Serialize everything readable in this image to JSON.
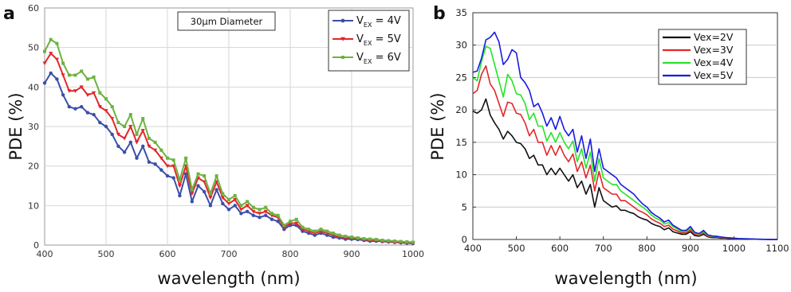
{
  "chart_data": [
    {
      "type": "line",
      "panel_label": "a",
      "title": "",
      "annotation": "30µm Diameter",
      "xlabel": "wavelength (nm)",
      "ylabel": "PDE (%)",
      "xlim": [
        400,
        1000
      ],
      "ylim": [
        0,
        60
      ],
      "xticks": [
        400,
        500,
        600,
        700,
        800,
        900,
        1000
      ],
      "yticks": [
        0,
        10,
        20,
        30,
        40,
        50,
        60
      ],
      "grid": true,
      "legend_position": "top-right",
      "x": [
        400,
        410,
        420,
        430,
        440,
        450,
        460,
        470,
        480,
        490,
        500,
        510,
        520,
        530,
        540,
        550,
        560,
        570,
        580,
        590,
        600,
        610,
        620,
        630,
        640,
        650,
        660,
        670,
        680,
        690,
        700,
        710,
        720,
        730,
        740,
        750,
        760,
        770,
        780,
        790,
        800,
        810,
        820,
        830,
        840,
        850,
        860,
        870,
        880,
        890,
        900,
        910,
        920,
        930,
        940,
        950,
        960,
        970,
        980,
        990,
        1000
      ],
      "series": [
        {
          "name": "V",
          "subscript": "EX",
          "name_suffix": " = 4V",
          "color": "#3a4fa8",
          "marker": "circle",
          "values": [
            41,
            43.5,
            42,
            38,
            35,
            34.5,
            35,
            33.5,
            33,
            31,
            30,
            28,
            25,
            23.5,
            26,
            22,
            25,
            21,
            20.5,
            19,
            17.5,
            17,
            12.5,
            18,
            11,
            15,
            13.5,
            10,
            14,
            10.5,
            9,
            10,
            8,
            8.5,
            7.5,
            7,
            7.5,
            6.5,
            6,
            4,
            5,
            5,
            3.5,
            3,
            2.5,
            3,
            2.5,
            2,
            1.8,
            1.5,
            1.5,
            1.4,
            1.2,
            1,
            1,
            0.9,
            0.8,
            0.7,
            0.6,
            0.5,
            0.4
          ]
        },
        {
          "name": "V",
          "subscript": "EX",
          "name_suffix": " = 5V",
          "color": "#e3262b",
          "marker": "triangle",
          "values": [
            46,
            48.5,
            47,
            43,
            39,
            39,
            40,
            38,
            38.5,
            35,
            34,
            32,
            28,
            27,
            30,
            26,
            29,
            25,
            24,
            22,
            20,
            20,
            15,
            20,
            13,
            17,
            16,
            12,
            16,
            12,
            10.5,
            11.5,
            9,
            10,
            8.5,
            8,
            8.5,
            7.5,
            7,
            4.5,
            5.5,
            5.5,
            4,
            3.5,
            3,
            3.5,
            3,
            2.5,
            2,
            1.8,
            1.8,
            1.6,
            1.4,
            1.2,
            1.2,
            1,
            0.9,
            0.8,
            0.7,
            0.6,
            0.5
          ]
        },
        {
          "name": "V",
          "subscript": "EX",
          "name_suffix": " = 6V",
          "color": "#6bb33f",
          "marker": "square",
          "values": [
            49,
            52,
            51,
            46,
            43,
            43,
            44,
            42,
            42.5,
            38.5,
            37,
            35,
            31,
            30,
            33,
            28,
            32,
            27,
            26,
            24,
            22,
            21.5,
            16.5,
            22,
            14,
            18,
            17.5,
            13,
            17.5,
            13,
            11.5,
            12.5,
            10,
            11,
            9.5,
            9,
            9.5,
            8,
            7.5,
            5,
            6,
            6.5,
            4.5,
            4,
            3.5,
            4,
            3.5,
            3,
            2.5,
            2.2,
            2,
            1.8,
            1.6,
            1.5,
            1.4,
            1.2,
            1.1,
            1,
            0.9,
            0.8,
            0.7
          ]
        }
      ]
    },
    {
      "type": "line",
      "panel_label": "b",
      "title": "",
      "xlabel": "wavelength (nm)",
      "ylabel": "PDE (%)",
      "xlim": [
        400,
        1100
      ],
      "ylim": [
        0,
        35
      ],
      "xticks": [
        400,
        500,
        600,
        700,
        800,
        900,
        1000,
        1100
      ],
      "yticks": [
        0,
        5,
        10,
        15,
        20,
        25,
        30,
        35
      ],
      "grid": true,
      "legend_position": "top-right",
      "x": [
        400,
        410,
        420,
        430,
        440,
        450,
        460,
        470,
        480,
        490,
        500,
        510,
        520,
        530,
        540,
        550,
        560,
        570,
        580,
        590,
        600,
        610,
        620,
        630,
        640,
        650,
        660,
        670,
        680,
        690,
        700,
        710,
        720,
        730,
        740,
        750,
        760,
        770,
        780,
        790,
        800,
        810,
        820,
        830,
        840,
        850,
        860,
        870,
        880,
        890,
        900,
        910,
        920,
        930,
        940,
        950,
        960,
        970,
        980,
        990,
        1000,
        1010,
        1020,
        1030,
        1040,
        1050,
        1060,
        1070,
        1080,
        1090,
        1100
      ],
      "series": [
        {
          "name": "Vex=2V",
          "color": "#111111",
          "values": [
            19.8,
            19.5,
            20,
            21.7,
            19.2,
            18,
            17,
            15.5,
            16.7,
            16,
            15,
            14.8,
            14,
            12.5,
            13,
            11.5,
            11.5,
            10,
            11,
            10,
            11,
            10,
            9,
            10,
            8,
            9,
            7,
            8.5,
            5,
            8,
            6,
            5.5,
            5,
            5.2,
            4.5,
            4.5,
            4.2,
            4,
            3.5,
            3.2,
            3,
            2.5,
            2.2,
            2,
            1.5,
            1.8,
            1.2,
            1,
            0.8,
            0.8,
            1.2,
            0.6,
            0.5,
            0.8,
            0.4,
            0.3,
            0.3,
            0.2,
            0.2,
            0.15,
            0.1,
            0.1,
            0.08,
            0.05,
            0.05,
            0.03,
            0.02,
            0.02,
            0.01,
            0.01,
            0
          ]
        },
        {
          "name": "Vex=3V",
          "color": "#e3262b",
          "values": [
            22.5,
            23,
            25.5,
            26.8,
            24,
            23,
            21,
            19,
            21.2,
            21,
            19.5,
            19.3,
            18,
            16,
            17,
            15,
            15,
            13,
            14.5,
            13,
            14.5,
            13,
            12,
            13.2,
            10.5,
            12,
            9.5,
            11.5,
            7.5,
            10.5,
            8,
            7.5,
            7,
            7,
            6,
            6,
            5.5,
            5,
            4.5,
            4.2,
            3.8,
            3.2,
            2.8,
            2.5,
            2,
            2.2,
            1.6,
            1.3,
            1,
            1,
            1.5,
            0.8,
            0.6,
            1,
            0.5,
            0.4,
            0.4,
            0.3,
            0.25,
            0.2,
            0.15,
            0.12,
            0.1,
            0.08,
            0.06,
            0.04,
            0.03,
            0.02,
            0.02,
            0.01,
            0
          ]
        },
        {
          "name": "Vex=4V",
          "color": "#27e327",
          "values": [
            25,
            24.5,
            27.5,
            29.8,
            29.5,
            27,
            24.5,
            22,
            25.5,
            24.5,
            22.5,
            22.3,
            21,
            18.5,
            19.5,
            17.5,
            17.5,
            15.2,
            16.5,
            15,
            16.5,
            15,
            14,
            15.2,
            12,
            14,
            11,
            13.5,
            9,
            12.5,
            9.5,
            9,
            8.5,
            8.5,
            7.5,
            7,
            6.5,
            6,
            5.5,
            5,
            4.5,
            3.8,
            3.3,
            3,
            2.4,
            2.6,
            2,
            1.6,
            1.2,
            1.2,
            1.8,
            1,
            0.8,
            1.2,
            0.6,
            0.5,
            0.45,
            0.35,
            0.3,
            0.25,
            0.2,
            0.15,
            0.12,
            0.1,
            0.08,
            0.05,
            0.04,
            0.03,
            0.02,
            0.01,
            0
          ]
        },
        {
          "name": "Vex=5V",
          "color": "#1a1ae0",
          "values": [
            25.8,
            26,
            28,
            30.8,
            31.2,
            32,
            30.5,
            27,
            27.8,
            29.3,
            28.8,
            25,
            24.2,
            23,
            20.5,
            21,
            19.5,
            17.5,
            18.8,
            17,
            19,
            17,
            16,
            17,
            13.5,
            16,
            12.5,
            15.5,
            10.5,
            14,
            11,
            10.5,
            10,
            9.5,
            8.5,
            8,
            7.5,
            7,
            6.2,
            5.5,
            5,
            4.2,
            3.7,
            3.3,
            2.7,
            3,
            2.2,
            1.8,
            1.4,
            1.4,
            2,
            1.1,
            0.9,
            1.4,
            0.7,
            0.55,
            0.5,
            0.4,
            0.3,
            0.25,
            0.2,
            0.15,
            0.12,
            0.1,
            0.08,
            0.06,
            0.04,
            0.03,
            0.02,
            0.01,
            0
          ]
        }
      ]
    }
  ]
}
